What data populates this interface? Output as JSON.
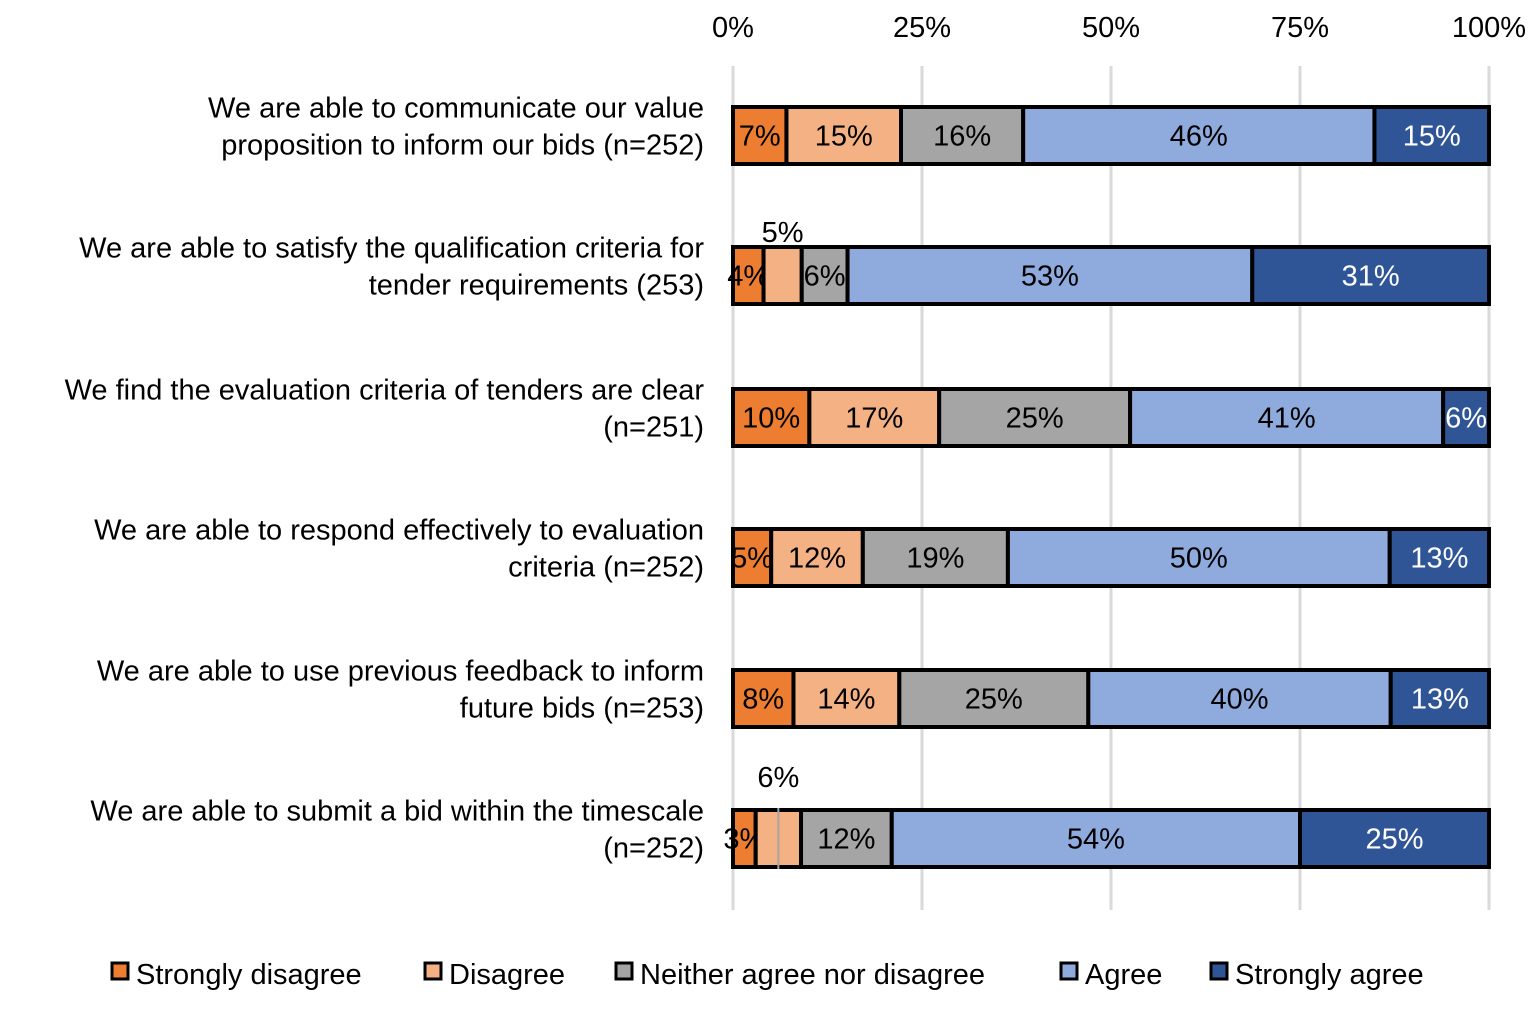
{
  "chart_data": {
    "type": "bar",
    "orientation": "horizontal",
    "stacked": "100%",
    "categories": [
      [
        "We are able to communicate our value",
        "proposition to inform our bids (n=252)"
      ],
      [
        "We are able to satisfy the qualification criteria for",
        "tender requirements (253)"
      ],
      [
        "We find the evaluation criteria of tenders are clear",
        "(n=251)"
      ],
      [
        "We are able to respond effectively to evaluation",
        "criteria (n=252)"
      ],
      [
        "We are able to use previous feedback to inform",
        "future bids (n=253)"
      ],
      [
        "We are able to submit a bid within the timescale",
        "(n=252)"
      ]
    ],
    "series": [
      {
        "name": "Strongly disagree",
        "color": "#ED7D31",
        "label_color": "#000000",
        "values": [
          7,
          4,
          10,
          5,
          8,
          3
        ]
      },
      {
        "name": "Disagree",
        "color": "#F4B183",
        "label_color": "#000000",
        "values": [
          15,
          5,
          17,
          12,
          14,
          6
        ]
      },
      {
        "name": "Neither agree nor disagree",
        "color": "#A5A5A5",
        "label_color": "#000000",
        "values": [
          16,
          6,
          25,
          19,
          25,
          12
        ]
      },
      {
        "name": "Agree",
        "color": "#8FAADC",
        "label_color": "#000000",
        "values": [
          46,
          53,
          41,
          50,
          40,
          54
        ]
      },
      {
        "name": "Strongly agree",
        "color": "#2F5597",
        "label_color": "#FFFFFF",
        "values": [
          15,
          31,
          6,
          13,
          13,
          25
        ]
      }
    ],
    "x_ticks": [
      "0%",
      "25%",
      "50%",
      "75%",
      "100%"
    ],
    "xlim": [
      0,
      100
    ],
    "x_axis_position": "top",
    "grid": true,
    "legend": "bottom"
  }
}
